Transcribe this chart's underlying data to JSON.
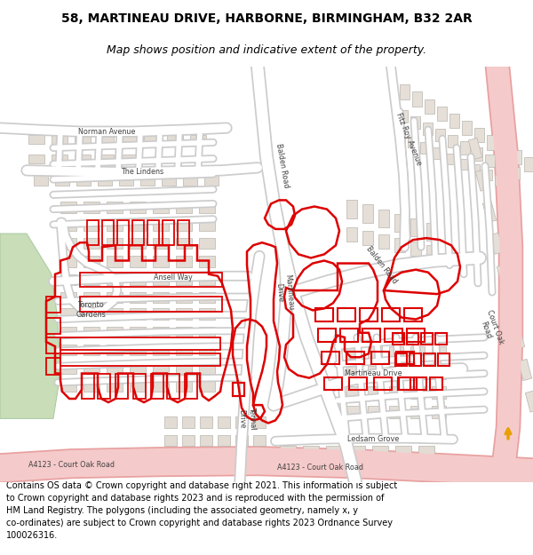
{
  "title_line1": "58, MARTINEAU DRIVE, HARBORNE, BIRMINGHAM, B32 2AR",
  "title_line2": "Map shows position and indicative extent of the property.",
  "footer": "Contains OS data © Crown copyright and database right 2021. This information is subject\nto Crown copyright and database rights 2023 and is reproduced with the permission of\nHM Land Registry. The polygons (including the associated geometry, namely x, y\nco-ordinates) are subject to Crown copyright and database rights 2023 Ordnance Survey\n100026316.",
  "map_bg": "#f0ebe2",
  "road_color": "#ffffff",
  "road_edge_color": "#cccccc",
  "building_color": "#e2dcd4",
  "building_edge": "#b8b5ae",
  "green_color": "#c8ddb8",
  "red_color": "#dd0000",
  "major_road_fill": "#f5caca",
  "major_road_edge": "#e8a0a0",
  "title_fontsize": 10,
  "subtitle_fontsize": 9,
  "footer_fontsize": 7.0,
  "label_fontsize": 6.5,
  "small_label_fontsize": 5.8
}
